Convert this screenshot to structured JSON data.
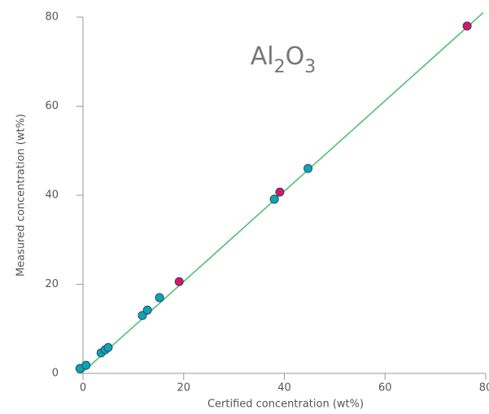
{
  "chart_data": {
    "type": "scatter",
    "title_parts": [
      {
        "text": "Al"
      },
      {
        "text": "2",
        "sub": true
      },
      {
        "text": "O"
      },
      {
        "text": "3",
        "sub": true
      }
    ],
    "x_label": "Certified concentration (wt%)",
    "y_label": "Measured concentration (wt%)",
    "xlim": [
      0,
      80
    ],
    "ylim": [
      0,
      80
    ],
    "xticks": [
      0,
      20,
      40,
      60,
      80
    ],
    "yticks": [
      0,
      20,
      40,
      60,
      80
    ],
    "series": [
      {
        "color": "#0fa3b8",
        "x": [
          -0.6,
          0.6,
          3.6,
          4.4,
          5.0,
          11.8,
          12.8,
          15.2,
          38.0,
          44.7
        ],
        "values": [
          1.1,
          1.8,
          4.6,
          5.3,
          5.8,
          13.0,
          14.2,
          17.0,
          39.1,
          46.0
        ]
      },
      {
        "color": "#e0106b",
        "x": [
          19.1,
          39.1,
          76.3
        ],
        "values": [
          20.6,
          40.7,
          78.0
        ]
      }
    ],
    "fit_line": {
      "color": "#4cbb6c",
      "x": [
        -0.3,
        79.5
      ],
      "values": [
        0,
        81
      ]
    }
  }
}
